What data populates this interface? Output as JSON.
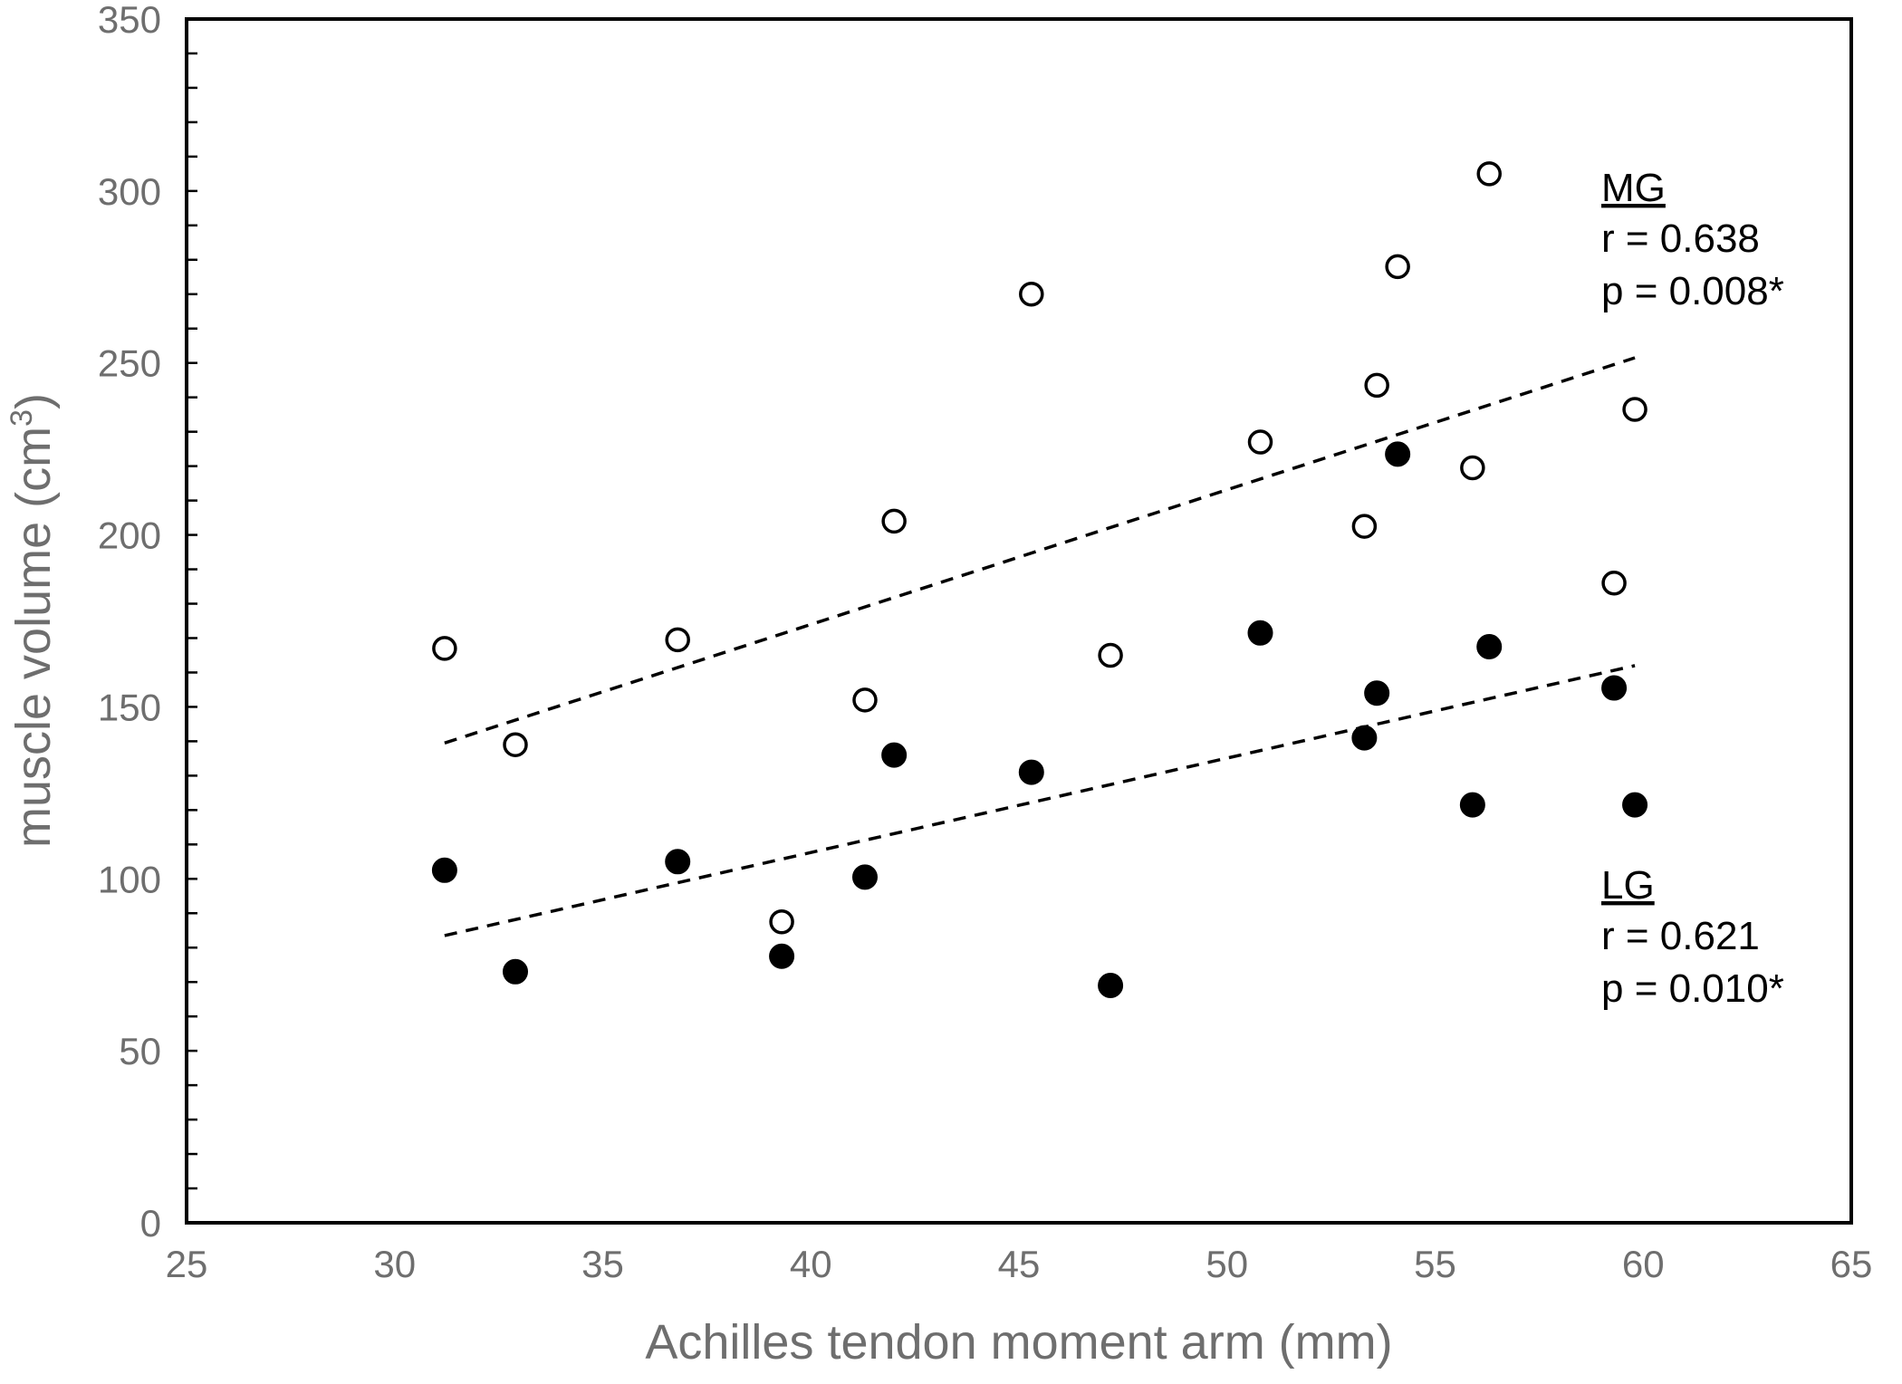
{
  "chart_data": {
    "type": "scatter",
    "xlabel": "Achilles tendon moment arm (mm)",
    "ylabel": {
      "prefix": "muscle volume (cm",
      "sup": "3",
      "suffix": ")"
    },
    "xlim": [
      25,
      65
    ],
    "ylim": [
      0,
      350
    ],
    "x_ticks": [
      "25",
      "30",
      "35",
      "40",
      "45",
      "50",
      "55",
      "60",
      "65"
    ],
    "y_ticks": [
      "0",
      "50",
      "100",
      "150",
      "200",
      "250",
      "300",
      "350"
    ],
    "x_tick_values": [
      25,
      30,
      35,
      40,
      45,
      50,
      55,
      60,
      65
    ],
    "y_tick_values": [
      0,
      50,
      100,
      150,
      200,
      250,
      300,
      350
    ],
    "y_minor_step": 10,
    "grid": false,
    "series": [
      {
        "name": "MG",
        "marker": "open-circle",
        "points": [
          {
            "x": 31.2,
            "y": 167
          },
          {
            "x": 32.9,
            "y": 139
          },
          {
            "x": 36.8,
            "y": 169.5
          },
          {
            "x": 39.3,
            "y": 87.5
          },
          {
            "x": 41.3,
            "y": 152
          },
          {
            "x": 42.0,
            "y": 204
          },
          {
            "x": 45.3,
            "y": 270
          },
          {
            "x": 47.2,
            "y": 165
          },
          {
            "x": 50.8,
            "y": 227
          },
          {
            "x": 53.3,
            "y": 202.5
          },
          {
            "x": 53.6,
            "y": 243.5
          },
          {
            "x": 54.1,
            "y": 278
          },
          {
            "x": 55.9,
            "y": 219.5
          },
          {
            "x": 56.3,
            "y": 305
          },
          {
            "x": 59.3,
            "y": 186
          },
          {
            "x": 59.8,
            "y": 236.5
          }
        ],
        "trendline": {
          "x": [
            31.2,
            59.8
          ],
          "y": [
            139.5,
            251.5
          ]
        }
      },
      {
        "name": "LG",
        "marker": "filled-circle",
        "points": [
          {
            "x": 31.2,
            "y": 102.5
          },
          {
            "x": 32.9,
            "y": 73
          },
          {
            "x": 36.8,
            "y": 105
          },
          {
            "x": 39.3,
            "y": 77.5
          },
          {
            "x": 41.3,
            "y": 100.5
          },
          {
            "x": 42.0,
            "y": 136
          },
          {
            "x": 45.3,
            "y": 131
          },
          {
            "x": 47.2,
            "y": 69
          },
          {
            "x": 50.8,
            "y": 171.5
          },
          {
            "x": 53.3,
            "y": 141
          },
          {
            "x": 53.6,
            "y": 154
          },
          {
            "x": 54.1,
            "y": 223.5
          },
          {
            "x": 55.9,
            "y": 121.5
          },
          {
            "x": 56.3,
            "y": 167.5
          },
          {
            "x": 59.3,
            "y": 155.5
          },
          {
            "x": 59.8,
            "y": 121.5
          }
        ],
        "trendline": {
          "x": [
            31.2,
            59.8
          ],
          "y": [
            83.5,
            162
          ]
        }
      }
    ],
    "annotations": [
      {
        "id": "mg",
        "title": "MG",
        "r": "r = 0.638",
        "p": "p = 0.008*",
        "placement": "upper-right"
      },
      {
        "id": "lg",
        "title": "LG",
        "r": "r = 0.621",
        "p": "p = 0.010*",
        "placement": "lower-right"
      }
    ]
  }
}
